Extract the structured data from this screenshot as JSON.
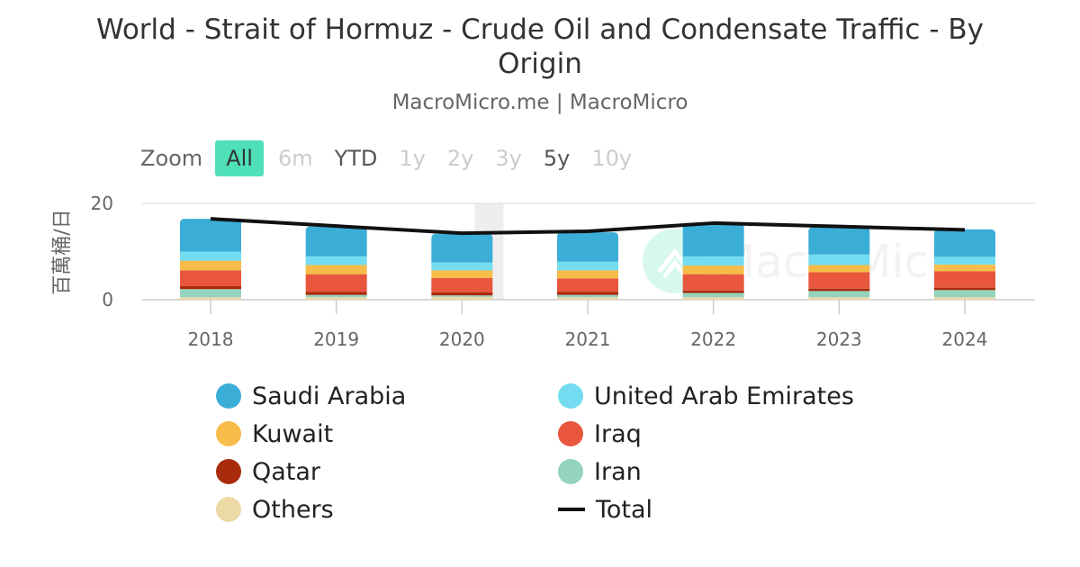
{
  "title": "World - Strait of Hormuz - Crude Oil and Condensate Traffic - By Origin",
  "subtitle": "MacroMicro.me | MacroMicro",
  "watermark": "MacroMicro",
  "zoom": {
    "label": "Zoom",
    "buttons": [
      {
        "label": "All",
        "state": "active"
      },
      {
        "label": "6m",
        "state": "disabled"
      },
      {
        "label": "YTD",
        "state": "enabled"
      },
      {
        "label": "1y",
        "state": "disabled"
      },
      {
        "label": "2y",
        "state": "disabled"
      },
      {
        "label": "3y",
        "state": "disabled"
      },
      {
        "label": "5y",
        "state": "enabled"
      },
      {
        "label": "10y",
        "state": "disabled"
      }
    ]
  },
  "chart_data": {
    "type": "bar",
    "stacked": true,
    "title": "World - Strait of Hormuz - Crude Oil and Condensate Traffic - By Origin",
    "subtitle": "MacroMicro.me | MacroMicro",
    "ylabel": "百萬桶/日",
    "xlabel": "",
    "ylim": [
      0,
      20
    ],
    "yticks": [
      0,
      20
    ],
    "grid": true,
    "legend_position": "bottom",
    "categories": [
      "2018",
      "2019",
      "2020",
      "2021",
      "2022",
      "2023",
      "2024"
    ],
    "highlight_category": "2020",
    "series": [
      {
        "name": "Others",
        "color": "#ecd9a6",
        "values": [
          0.5,
          0.5,
          0.6,
          0.5,
          0.5,
          0.5,
          0.5
        ]
      },
      {
        "name": "Iran",
        "color": "#94d3bd",
        "values": [
          1.7,
          0.5,
          0.3,
          0.5,
          0.9,
          1.3,
          1.5
        ]
      },
      {
        "name": "Qatar",
        "color": "#a82b0c",
        "values": [
          0.6,
          0.6,
          0.6,
          0.6,
          0.5,
          0.5,
          0.5
        ]
      },
      {
        "name": "Iraq",
        "color": "#e8563e",
        "values": [
          3.3,
          3.7,
          3.0,
          2.8,
          3.4,
          3.4,
          3.4
        ]
      },
      {
        "name": "Kuwait",
        "color": "#f7bc49",
        "values": [
          2.0,
          1.9,
          1.6,
          1.7,
          1.8,
          1.5,
          1.4
        ]
      },
      {
        "name": "United Arab Emirates",
        "color": "#73dcf0",
        "values": [
          1.9,
          1.8,
          1.6,
          1.8,
          1.9,
          2.2,
          1.6
        ]
      },
      {
        "name": "Saudi Arabia",
        "color": "#3baed8",
        "values": [
          6.8,
          6.2,
          6.0,
          6.1,
          6.9,
          5.7,
          5.7
        ]
      }
    ],
    "total": {
      "name": "Total",
      "color": "#111111",
      "values": [
        16.8,
        15.3,
        13.8,
        14.2,
        15.9,
        15.2,
        14.5
      ]
    }
  }
}
